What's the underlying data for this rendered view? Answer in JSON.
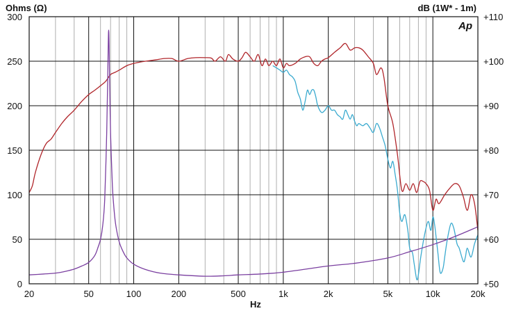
{
  "chart_data": {
    "type": "line",
    "left_axis_label": "Ohms (Ω)",
    "right_axis_label": "dB (1W* - 1m)",
    "xlabel": "Hz",
    "logo": "Ap",
    "x_scale": "log",
    "xlim": [
      20,
      20000
    ],
    "ylim_left": [
      0,
      300
    ],
    "ylim_right": [
      50,
      110
    ],
    "grid": true,
    "x_ticks": [
      {
        "v": 20,
        "label": "20"
      },
      {
        "v": 50,
        "label": "50"
      },
      {
        "v": 100,
        "label": "100"
      },
      {
        "v": 200,
        "label": "200"
      },
      {
        "v": 500,
        "label": "500"
      },
      {
        "v": 1000,
        "label": "1k"
      },
      {
        "v": 2000,
        "label": "2k"
      },
      {
        "v": 5000,
        "label": "5k"
      },
      {
        "v": 10000,
        "label": "10k"
      },
      {
        "v": 20000,
        "label": "20k"
      }
    ],
    "left_ticks": [
      {
        "v": 0,
        "label": "0"
      },
      {
        "v": 50,
        "label": "50"
      },
      {
        "v": 100,
        "label": "100"
      },
      {
        "v": 150,
        "label": "150"
      },
      {
        "v": 200,
        "label": "200"
      },
      {
        "v": 250,
        "label": "250"
      },
      {
        "v": 300,
        "label": "300"
      }
    ],
    "right_ticks": [
      {
        "v": 50,
        "label": "+50"
      },
      {
        "v": 60,
        "label": "+60"
      },
      {
        "v": 70,
        "label": "+70"
      },
      {
        "v": 80,
        "label": "+80"
      },
      {
        "v": 90,
        "label": "+90"
      },
      {
        "v": 100,
        "label": "+100"
      },
      {
        "v": 110,
        "label": "+110"
      }
    ],
    "series": [
      {
        "axis": "right",
        "color": "#b0252a",
        "points": [
          [
            20,
            70.5
          ],
          [
            21,
            72
          ],
          [
            22,
            75
          ],
          [
            24,
            79
          ],
          [
            26,
            81.5
          ],
          [
            28,
            82.5
          ],
          [
            30,
            84
          ],
          [
            33,
            86
          ],
          [
            36,
            87.5
          ],
          [
            40,
            89
          ],
          [
            45,
            91
          ],
          [
            50,
            92.5
          ],
          [
            55,
            93.5
          ],
          [
            60,
            94.5
          ],
          [
            65,
            95.5
          ],
          [
            70,
            97
          ],
          [
            75,
            97.5
          ],
          [
            80,
            98
          ],
          [
            90,
            99
          ],
          [
            100,
            99.5
          ],
          [
            110,
            99.8
          ],
          [
            120,
            100
          ],
          [
            140,
            100.3
          ],
          [
            160,
            100.6
          ],
          [
            180,
            100.6
          ],
          [
            200,
            100
          ],
          [
            230,
            100.6
          ],
          [
            260,
            100.8
          ],
          [
            300,
            100.8
          ],
          [
            330,
            100.7
          ],
          [
            350,
            100
          ],
          [
            380,
            101
          ],
          [
            410,
            100
          ],
          [
            430,
            101.5
          ],
          [
            460,
            100.5
          ],
          [
            500,
            100
          ],
          [
            530,
            100.8
          ],
          [
            560,
            102
          ],
          [
            600,
            101
          ],
          [
            640,
            100
          ],
          [
            680,
            101.5
          ],
          [
            720,
            99
          ],
          [
            760,
            100.5
          ],
          [
            800,
            99
          ],
          [
            850,
            100
          ],
          [
            900,
            99
          ],
          [
            950,
            100.5
          ],
          [
            1000,
            98.5
          ],
          [
            1050,
            99.5
          ],
          [
            1100,
            99
          ],
          [
            1200,
            99.5
          ],
          [
            1300,
            100.5
          ],
          [
            1400,
            101
          ],
          [
            1500,
            101
          ],
          [
            1600,
            99.5
          ],
          [
            1700,
            99
          ],
          [
            1800,
            100
          ],
          [
            1900,
            100.5
          ],
          [
            2000,
            100.8
          ],
          [
            2200,
            102
          ],
          [
            2400,
            103
          ],
          [
            2600,
            104
          ],
          [
            2800,
            102.5
          ],
          [
            3000,
            103
          ],
          [
            3200,
            103
          ],
          [
            3400,
            102.5
          ],
          [
            3700,
            101
          ],
          [
            4000,
            99.5
          ],
          [
            4200,
            97
          ],
          [
            4500,
            98.5
          ],
          [
            4700,
            96.5
          ],
          [
            5000,
            90
          ],
          [
            5400,
            86
          ],
          [
            5800,
            79
          ],
          [
            6200,
            71
          ],
          [
            6600,
            72.5
          ],
          [
            7000,
            71
          ],
          [
            7400,
            72.5
          ],
          [
            7800,
            70.5
          ],
          [
            8200,
            73
          ],
          [
            8600,
            73
          ],
          [
            9000,
            72.5
          ],
          [
            9500,
            71
          ],
          [
            10000,
            66.5
          ],
          [
            10500,
            69
          ],
          [
            11000,
            68
          ],
          [
            12000,
            70
          ],
          [
            13000,
            71.5
          ],
          [
            14000,
            72.5
          ],
          [
            15000,
            72
          ],
          [
            16000,
            69.5
          ],
          [
            17000,
            66.5
          ],
          [
            18000,
            70
          ],
          [
            19000,
            68
          ],
          [
            20000,
            62
          ]
        ]
      },
      {
        "axis": "right",
        "color": "#3aaacf",
        "points": [
          [
            850,
            99
          ],
          [
            900,
            98.5
          ],
          [
            950,
            98
          ],
          [
            1000,
            97.5
          ],
          [
            1050,
            98
          ],
          [
            1100,
            97
          ],
          [
            1150,
            96.5
          ],
          [
            1200,
            95.5
          ],
          [
            1250,
            93
          ],
          [
            1300,
            91.5
          ],
          [
            1350,
            89
          ],
          [
            1400,
            91
          ],
          [
            1450,
            93.5
          ],
          [
            1500,
            92.5
          ],
          [
            1550,
            93.5
          ],
          [
            1600,
            93.5
          ],
          [
            1650,
            92
          ],
          [
            1700,
            90
          ],
          [
            1800,
            88.5
          ],
          [
            1900,
            89
          ],
          [
            2000,
            90
          ],
          [
            2100,
            89
          ],
          [
            2200,
            89
          ],
          [
            2300,
            88
          ],
          [
            2400,
            87.5
          ],
          [
            2500,
            87
          ],
          [
            2600,
            89
          ],
          [
            2700,
            88
          ],
          [
            2800,
            87
          ],
          [
            2900,
            88
          ],
          [
            3000,
            86.5
          ],
          [
            3100,
            85.5
          ],
          [
            3200,
            86
          ],
          [
            3400,
            85.5
          ],
          [
            3600,
            86
          ],
          [
            3800,
            85
          ],
          [
            4000,
            84
          ],
          [
            4200,
            86
          ],
          [
            4400,
            85
          ],
          [
            4600,
            83
          ],
          [
            4800,
            81
          ],
          [
            5000,
            78
          ],
          [
            5200,
            76
          ],
          [
            5400,
            77.5
          ],
          [
            5600,
            74.5
          ],
          [
            5800,
            71
          ],
          [
            6000,
            66
          ],
          [
            6200,
            64
          ],
          [
            6500,
            65.5
          ],
          [
            6800,
            62
          ],
          [
            7000,
            58
          ],
          [
            7300,
            57
          ],
          [
            7500,
            54.5
          ],
          [
            7800,
            51
          ],
          [
            8000,
            52
          ],
          [
            8300,
            56
          ],
          [
            8800,
            61
          ],
          [
            9300,
            64
          ],
          [
            9700,
            62
          ],
          [
            10000,
            65
          ],
          [
            10300,
            63
          ],
          [
            10800,
            57
          ],
          [
            11200,
            52.5
          ],
          [
            11700,
            53.5
          ],
          [
            12000,
            56
          ],
          [
            12500,
            60
          ],
          [
            13200,
            63.5
          ],
          [
            13800,
            62.5
          ],
          [
            14500,
            59
          ],
          [
            15000,
            58
          ],
          [
            16000,
            55
          ],
          [
            16500,
            56
          ],
          [
            17000,
            58
          ],
          [
            18000,
            56
          ],
          [
            19000,
            59
          ],
          [
            20000,
            61
          ]
        ]
      },
      {
        "axis": "left",
        "color": "#7a3fa0",
        "points": [
          [
            20,
            10
          ],
          [
            25,
            11
          ],
          [
            30,
            12
          ],
          [
            35,
            14
          ],
          [
            40,
            16.5
          ],
          [
            45,
            20
          ],
          [
            50,
            24
          ],
          [
            55,
            32
          ],
          [
            58,
            42
          ],
          [
            60,
            50
          ],
          [
            62,
            65
          ],
          [
            64,
            95
          ],
          [
            66,
            170
          ],
          [
            67,
            230
          ],
          [
            68,
            285
          ],
          [
            69,
            230
          ],
          [
            70,
            170
          ],
          [
            72,
            110
          ],
          [
            74,
            82
          ],
          [
            76,
            65
          ],
          [
            80,
            47
          ],
          [
            85,
            36
          ],
          [
            90,
            29
          ],
          [
            100,
            22
          ],
          [
            120,
            16
          ],
          [
            150,
            12
          ],
          [
            200,
            10
          ],
          [
            300,
            8.5
          ],
          [
            400,
            9
          ],
          [
            500,
            10
          ],
          [
            700,
            11
          ],
          [
            1000,
            13
          ],
          [
            2000,
            20
          ],
          [
            3000,
            23
          ],
          [
            5000,
            29
          ],
          [
            7000,
            36
          ],
          [
            10000,
            44
          ],
          [
            14000,
            53
          ],
          [
            20000,
            64
          ]
        ]
      }
    ]
  }
}
